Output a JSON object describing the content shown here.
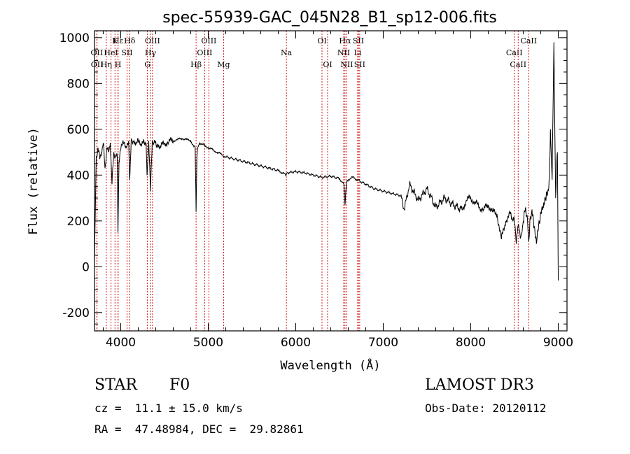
{
  "chart_data": {
    "type": "line",
    "title": "spec-55939-GAC_045N28_B1_sp12-006.fits",
    "xlabel": "Wavelength (Å)",
    "ylabel": "Flux (relative)",
    "xlim": [
      3700,
      9100
    ],
    "ylim": [
      -280,
      1030
    ],
    "x_ticks": [
      4000,
      5000,
      6000,
      7000,
      8000,
      9000
    ],
    "y_ticks": [
      -200,
      0,
      200,
      400,
      600,
      800,
      1000
    ],
    "grid": false,
    "series": [
      {
        "name": "flux",
        "x": [
          3700,
          3720,
          3740,
          3760,
          3780,
          3800,
          3820,
          3840,
          3860,
          3880,
          3900,
          3920,
          3940,
          3960,
          3968,
          3980,
          4000,
          4030,
          4060,
          4090,
          4102,
          4120,
          4150,
          4180,
          4200,
          4230,
          4260,
          4290,
          4300,
          4320,
          4340,
          4360,
          4380,
          4420,
          4450,
          4500,
          4550,
          4600,
          4650,
          4700,
          4750,
          4800,
          4830,
          4850,
          4861,
          4870,
          4880,
          4900,
          4950,
          5000,
          5050,
          5100,
          5150,
          5200,
          5300,
          5400,
          5500,
          5600,
          5700,
          5800,
          5890,
          5900,
          6000,
          6100,
          6200,
          6300,
          6400,
          6500,
          6550,
          6563,
          6580,
          6600,
          6650,
          6700,
          6800,
          6900,
          7000,
          7100,
          7200,
          7240,
          7300,
          7400,
          7500,
          7600,
          7700,
          7800,
          7900,
          7950,
          8000,
          8050,
          8100,
          8150,
          8200,
          8250,
          8300,
          8350,
          8400,
          8450,
          8498,
          8520,
          8542,
          8570,
          8600,
          8620,
          8650,
          8662,
          8680,
          8700,
          8720,
          8750,
          8780,
          8800,
          8830,
          8860,
          8880,
          8900,
          8910,
          8930,
          8950,
          8970,
          8990,
          9000
        ],
        "y": [
          20,
          480,
          520,
          470,
          500,
          540,
          430,
          520,
          500,
          540,
          360,
          500,
          480,
          480,
          150,
          460,
          510,
          540,
          520,
          550,
          380,
          560,
          550,
          540,
          545,
          530,
          555,
          540,
          400,
          550,
          330,
          550,
          540,
          535,
          520,
          540,
          545,
          550,
          555,
          560,
          555,
          550,
          530,
          520,
          240,
          480,
          520,
          540,
          530,
          520,
          510,
          500,
          490,
          480,
          470,
          460,
          450,
          440,
          430,
          420,
          400,
          410,
          415,
          410,
          400,
          390,
          395,
          385,
          360,
          270,
          370,
          380,
          390,
          380,
          360,
          340,
          330,
          320,
          310,
          250,
          360,
          290,
          340,
          260,
          300,
          270,
          250,
          290,
          300,
          280,
          260,
          250,
          270,
          240,
          230,
          120,
          200,
          230,
          200,
          100,
          180,
          130,
          200,
          240,
          190,
          110,
          220,
          250,
          170,
          100,
          200,
          240,
          260,
          290,
          330,
          400,
          600,
          380,
          980,
          300,
          500,
          -60
        ],
        "color": "#000000"
      }
    ],
    "lines": [
      {
        "name": "H-epsilon",
        "label": "Hε",
        "x": 3970,
        "row": 1
      },
      {
        "name": "CaII-K",
        "label": "K",
        "x": 3934,
        "row": 1
      },
      {
        "name": "H-delta",
        "label": "Hδ",
        "x": 4102,
        "row": 1
      },
      {
        "name": "OII-a",
        "label": "OII",
        "x": 3727,
        "row": 2
      },
      {
        "name": "HeI",
        "label": "HeI",
        "x": 3889,
        "row": 2
      },
      {
        "name": "SII-4072",
        "label": "SII",
        "x": 4072,
        "row": 2
      },
      {
        "name": "OII-b",
        "label": "OII",
        "x": 3729,
        "row": 3
      },
      {
        "name": "H-eta",
        "label": "Hη",
        "x": 3835,
        "row": 3
      },
      {
        "name": "CaII-H",
        "label": "H",
        "x": 3968,
        "row": 3
      },
      {
        "name": "OIII-4363",
        "label": "OIII",
        "x": 4363,
        "row": 1
      },
      {
        "name": "H-gamma",
        "label": "Hγ",
        "x": 4340,
        "row": 2
      },
      {
        "name": "G-band",
        "label": "G",
        "x": 4305,
        "row": 3
      },
      {
        "name": "OIII-5007",
        "label": "OIII",
        "x": 5007,
        "row": 1
      },
      {
        "name": "OIII-4959",
        "label": "OIII",
        "x": 4959,
        "row": 2
      },
      {
        "name": "H-beta",
        "label": "Hβ",
        "x": 4861,
        "row": 3
      },
      {
        "name": "Mg",
        "label": "Mg",
        "x": 5175,
        "row": 3
      },
      {
        "name": "Na",
        "label": "Na",
        "x": 5893,
        "row": 2
      },
      {
        "name": "OI-6300",
        "label": "OI",
        "x": 6300,
        "row": 1
      },
      {
        "name": "OI-6364",
        "label": "OI",
        "x": 6364,
        "row": 3
      },
      {
        "name": "H-alpha",
        "label": "Hα",
        "x": 6563,
        "row": 1
      },
      {
        "name": "SII-6716",
        "label": "SII",
        "x": 6716,
        "row": 1
      },
      {
        "name": "NII-6548",
        "label": "NII",
        "x": 6548,
        "row": 2
      },
      {
        "name": "Li",
        "label": "Li",
        "x": 6708,
        "row": 2
      },
      {
        "name": "NII-6583",
        "label": "NII",
        "x": 6583,
        "row": 3
      },
      {
        "name": "SII-6731",
        "label": "SII",
        "x": 6731,
        "row": 3
      },
      {
        "name": "CaII-8662",
        "label": "CaII",
        "x": 8662,
        "row": 1
      },
      {
        "name": "CaII-8498",
        "label": "CaII",
        "x": 8498,
        "row": 2
      },
      {
        "name": "CaII-8542",
        "label": "CaII",
        "x": 8542,
        "row": 3
      }
    ]
  },
  "info": {
    "object_class": "STAR",
    "subclass": "F0",
    "redshift": "cz =  11.1 ± 15.0 km/s",
    "coords": "RA =  47.48984, DEC =  29.82861",
    "survey": "LAMOST DR3",
    "obs_date": "Obs-Date: 20120112"
  }
}
